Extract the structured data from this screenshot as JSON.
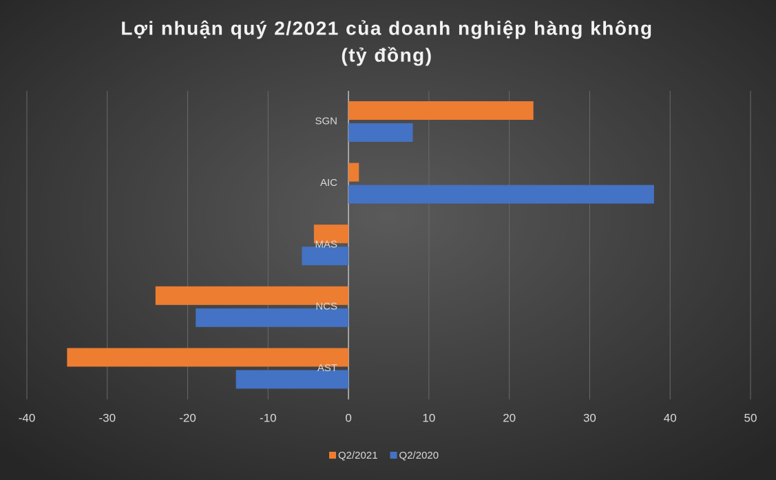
{
  "chart_data": {
    "type": "bar",
    "orientation": "horizontal",
    "title": "Lợi nhuận quý 2/2021 của doanh nghiệp hàng không",
    "subtitle": "(tỷ đồng)",
    "categories": [
      "SGN",
      "AIC",
      "MAS",
      "NCS",
      "AST"
    ],
    "series": [
      {
        "name": "Q2/2021",
        "color": "#ed7d31",
        "values": [
          23,
          1.3,
          -4.3,
          -24,
          -35
        ]
      },
      {
        "name": "Q2/2020",
        "color": "#4472c4",
        "values": [
          8,
          38,
          -5.8,
          -19,
          -14
        ]
      }
    ],
    "xlim": [
      -40,
      50
    ],
    "xticks": [
      -40,
      -30,
      -20,
      -10,
      0,
      10,
      20,
      30,
      40,
      50
    ],
    "grid": true,
    "legend": "bottom"
  }
}
